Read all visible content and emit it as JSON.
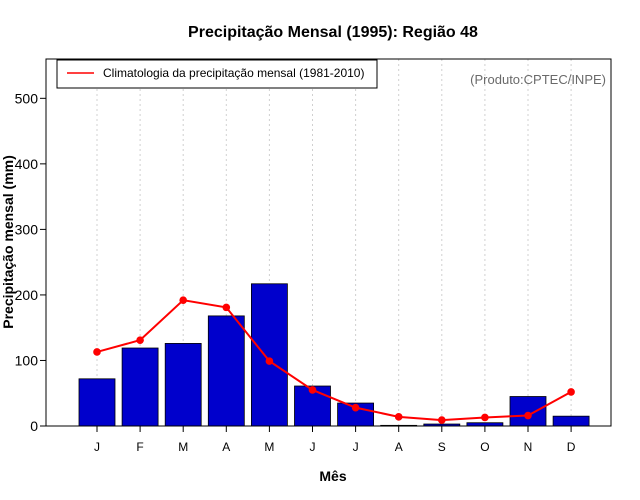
{
  "chart_data": {
    "type": "bar",
    "title": "Precipitação Mensal (1995): Região 48",
    "xlabel": "Mês",
    "ylabel": "Precipitação mensal (mm)",
    "categories": [
      "J",
      "F",
      "M",
      "A",
      "M",
      "J",
      "J",
      "A",
      "S",
      "O",
      "N",
      "D"
    ],
    "ylim": [
      0,
      560
    ],
    "yticks": [
      0,
      100,
      200,
      300,
      400,
      500
    ],
    "grid": "vertical-dotted",
    "series": [
      {
        "name": "Precipitação mensal (1995)",
        "type": "bar",
        "color": "#0000CC",
        "values": [
          72,
          119,
          126,
          168,
          217,
          61,
          35,
          1,
          3,
          5,
          45,
          15
        ]
      },
      {
        "name": "Climatologia da precipitação mensal (1981-2010)",
        "type": "line",
        "color": "#FF0000",
        "values": [
          113,
          131,
          192,
          181,
          99,
          55,
          28,
          14,
          9,
          13,
          16,
          52
        ]
      }
    ],
    "legend": {
      "label": "Climatologia da precipitação mensal (1981-2010)",
      "placement": "top-left"
    },
    "source": "(Produto:CPTEC/INPE)"
  }
}
